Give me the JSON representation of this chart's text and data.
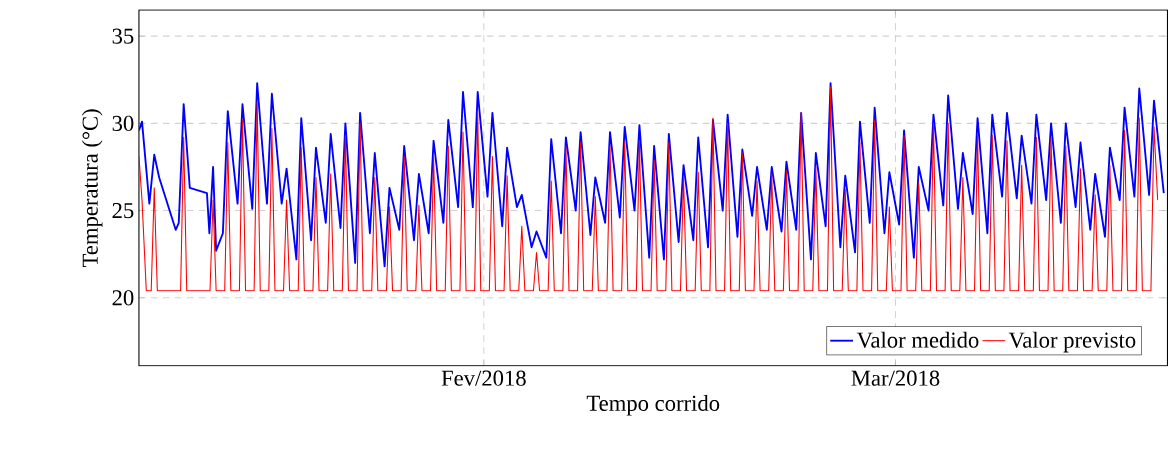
{
  "chart_data": {
    "type": "line",
    "xlabel": "Tempo corrido",
    "ylabel": "Temperatura (°C)",
    "xlim": [
      "2018-01-08T13:00",
      "2018-03-19T12:00"
    ],
    "xticks": [
      {
        "value": "2018-02-01",
        "label": "Fev/2018"
      },
      {
        "value": "2018-03-01",
        "label": "Mar/2018"
      }
    ],
    "ylim": [
      16.1,
      36.5
    ],
    "yticks": [
      20,
      25,
      30,
      35
    ],
    "grid": true,
    "legend": "bottom right",
    "line_style": "solid",
    "series": [
      {
        "name": "Valor medido",
        "color": "#0000ff",
        "x": [
          "2018-01-08T13:00",
          "2018-01-08T18:00",
          "2018-01-09T06:00",
          "2018-01-09T14:00",
          "2018-01-09T22:00",
          "2018-01-11T01:00",
          "2018-01-11T06:00",
          "2018-01-11T14:00",
          "2018-01-12T00:00",
          "2018-01-13T04:00",
          "2018-01-13T08:00",
          "2018-01-13T14:00",
          "2018-01-13T19:00",
          "2018-01-14T06:00",
          "2018-01-14T14:00",
          "2018-01-15T06:00",
          "2018-01-15T14:00",
          "2018-01-16T06:00",
          "2018-01-16T14:00",
          "2018-01-17T06:00",
          "2018-01-17T14:00",
          "2018-01-18T06:00",
          "2018-01-18T14:00",
          "2018-01-19T06:00",
          "2018-01-19T14:00",
          "2018-01-20T06:00",
          "2018-01-20T14:00",
          "2018-01-21T06:00",
          "2018-01-21T14:00",
          "2018-01-22T06:00",
          "2018-01-22T14:00",
          "2018-01-23T06:00",
          "2018-01-23T14:00",
          "2018-01-24T06:00",
          "2018-01-24T14:00",
          "2018-01-25T06:00",
          "2018-01-25T14:00",
          "2018-01-26T06:00",
          "2018-01-26T14:00",
          "2018-01-27T06:00",
          "2018-01-27T14:00",
          "2018-01-28T06:00",
          "2018-01-28T14:00",
          "2018-01-29T06:00",
          "2018-01-29T14:00",
          "2018-01-30T06:00",
          "2018-01-30T14:00",
          "2018-01-31T06:00",
          "2018-01-31T14:00",
          "2018-02-01T06:00",
          "2018-02-01T14:00",
          "2018-02-02T06:00",
          "2018-02-02T14:00",
          "2018-02-03T06:00",
          "2018-02-03T14:00",
          "2018-02-04T06:00",
          "2018-02-04T14:00",
          "2018-02-05T06:00",
          "2018-02-05T14:00",
          "2018-02-06T06:00",
          "2018-02-06T14:00",
          "2018-02-07T06:00",
          "2018-02-07T14:00",
          "2018-02-08T06:00",
          "2018-02-08T14:00",
          "2018-02-09T06:00",
          "2018-02-09T14:00",
          "2018-02-10T06:00",
          "2018-02-10T14:00",
          "2018-02-11T06:00",
          "2018-02-11T14:00",
          "2018-02-12T06:00",
          "2018-02-12T14:00",
          "2018-02-13T06:00",
          "2018-02-13T14:00",
          "2018-02-14T06:00",
          "2018-02-14T14:00",
          "2018-02-15T06:00",
          "2018-02-15T14:00",
          "2018-02-16T06:00",
          "2018-02-16T14:00",
          "2018-02-17T06:00",
          "2018-02-17T14:00",
          "2018-02-18T06:00",
          "2018-02-18T14:00",
          "2018-02-19T06:00",
          "2018-02-19T14:00",
          "2018-02-20T06:00",
          "2018-02-20T14:00",
          "2018-02-21T06:00",
          "2018-02-21T14:00",
          "2018-02-22T06:00",
          "2018-02-22T14:00",
          "2018-02-23T06:00",
          "2018-02-23T14:00",
          "2018-02-24T06:00",
          "2018-02-24T14:00",
          "2018-02-25T06:00",
          "2018-02-25T14:00",
          "2018-02-26T06:00",
          "2018-02-26T14:00",
          "2018-02-27T06:00",
          "2018-02-27T14:00",
          "2018-02-28T06:00",
          "2018-02-28T14:00",
          "2018-03-01T06:00",
          "2018-03-01T14:00",
          "2018-03-02T06:00",
          "2018-03-02T14:00",
          "2018-03-03T06:00",
          "2018-03-03T14:00",
          "2018-03-04T06:00",
          "2018-03-04T14:00",
          "2018-03-05T06:00",
          "2018-03-05T14:00",
          "2018-03-06T06:00",
          "2018-03-06T14:00",
          "2018-03-07T06:00",
          "2018-03-07T14:00",
          "2018-03-08T06:00",
          "2018-03-08T14:00",
          "2018-03-09T06:00",
          "2018-03-09T14:00",
          "2018-03-10T06:00",
          "2018-03-10T14:00",
          "2018-03-11T06:00",
          "2018-03-11T14:00",
          "2018-03-12T06:00",
          "2018-03-12T14:00",
          "2018-03-13T06:00",
          "2018-03-13T14:00",
          "2018-03-14T06:00",
          "2018-03-14T14:00",
          "2018-03-15T06:00",
          "2018-03-15T14:00",
          "2018-03-16T06:00",
          "2018-03-16T14:00",
          "2018-03-17T06:00",
          "2018-03-17T14:00",
          "2018-03-18T06:00",
          "2018-03-18T14:00",
          "2018-03-19T06:00"
        ],
        "values": [
          29.6,
          30.1,
          25.4,
          28.2,
          26.9,
          23.9,
          24.3,
          31.1,
          26.3,
          26.0,
          23.7,
          27.5,
          22.7,
          23.7,
          30.7,
          25.4,
          31.1,
          25.1,
          32.3,
          25.4,
          31.7,
          25.4,
          27.4,
          22.2,
          30.3,
          23.3,
          28.6,
          24.3,
          29.4,
          24.0,
          30.0,
          22.0,
          30.6,
          23.7,
          28.3,
          21.8,
          26.3,
          23.9,
          28.7,
          23.3,
          27.1,
          23.7,
          29.0,
          24.3,
          30.2,
          25.2,
          31.8,
          25.2,
          31.8,
          25.8,
          30.6,
          24.1,
          28.6,
          25.2,
          25.9,
          22.9,
          23.8,
          22.3,
          29.1,
          23.7,
          29.2,
          25.0,
          29.5,
          23.6,
          26.9,
          24.3,
          29.5,
          24.6,
          29.8,
          25.0,
          29.9,
          22.3,
          28.7,
          22.2,
          29.4,
          23.2,
          27.6,
          23.3,
          29.2,
          22.9,
          30.2,
          25.0,
          30.5,
          23.5,
          28.5,
          24.7,
          27.5,
          23.9,
          27.5,
          23.8,
          27.8,
          23.9,
          30.6,
          22.2,
          28.3,
          24.1,
          32.3,
          22.9,
          27.0,
          22.6,
          30.1,
          24.3,
          30.9,
          23.7,
          27.2,
          24.2,
          29.6,
          22.3,
          27.5,
          25.0,
          30.5,
          25.3,
          31.6,
          25.1,
          28.3,
          24.8,
          30.3,
          23.7,
          30.5,
          25.8,
          30.6,
          25.7,
          29.3,
          25.4,
          30.5,
          25.6,
          30.0,
          24.3,
          30.0,
          25.2,
          28.9,
          23.9,
          27.1,
          23.5,
          28.6,
          25.6,
          30.9,
          25.8,
          32.0,
          25.9,
          31.3,
          26.0
        ]
      },
      {
        "name": "Valor previsto",
        "color": "#ff0000",
        "x": [
          "2018-01-08T13:00",
          "2018-01-08T18:00",
          "2018-01-09T01:00",
          "2018-01-09T09:00",
          "2018-01-09T14:00",
          "2018-01-09T19:00",
          "2018-01-11T09:00",
          "2018-01-11T14:00",
          "2018-01-11T19:00",
          "2018-01-13T09:00",
          "2018-01-13T14:00",
          "2018-01-13T19:00",
          "2018-01-14T09:00",
          "2018-01-14T14:00",
          "2018-01-14T19:00",
          "2018-01-15T09:00",
          "2018-01-15T14:00",
          "2018-01-15T19:00",
          "2018-01-16T09:00",
          "2018-01-16T14:00",
          "2018-01-16T19:00",
          "2018-01-17T09:00",
          "2018-01-17T14:00",
          "2018-01-17T19:00",
          "2018-01-18T09:00",
          "2018-01-18T14:00",
          "2018-01-18T19:00",
          "2018-01-19T09:00",
          "2018-01-19T14:00",
          "2018-01-19T19:00",
          "2018-01-20T09:00",
          "2018-01-20T14:00",
          "2018-01-20T19:00",
          "2018-01-21T09:00",
          "2018-01-21T14:00",
          "2018-01-21T19:00",
          "2018-01-22T09:00",
          "2018-01-22T14:00",
          "2018-01-22T19:00",
          "2018-01-23T09:00",
          "2018-01-23T14:00",
          "2018-01-23T19:00",
          "2018-01-24T09:00",
          "2018-01-24T14:00",
          "2018-01-24T19:00",
          "2018-01-25T09:00",
          "2018-01-25T14:00",
          "2018-01-25T19:00",
          "2018-01-26T09:00",
          "2018-01-26T14:00",
          "2018-01-26T19:00",
          "2018-01-27T09:00",
          "2018-01-27T14:00",
          "2018-01-27T19:00",
          "2018-01-28T09:00",
          "2018-01-28T14:00",
          "2018-01-28T19:00",
          "2018-01-29T09:00",
          "2018-01-29T14:00",
          "2018-01-29T19:00",
          "2018-01-30T09:00",
          "2018-01-30T14:00",
          "2018-01-30T19:00",
          "2018-01-31T09:00",
          "2018-01-31T14:00",
          "2018-01-31T19:00",
          "2018-02-01T09:00",
          "2018-02-01T14:00",
          "2018-02-01T19:00",
          "2018-02-02T09:00",
          "2018-02-02T14:00",
          "2018-02-02T19:00",
          "2018-02-03T09:00",
          "2018-02-03T14:00",
          "2018-02-03T19:00",
          "2018-02-04T09:00",
          "2018-02-04T14:00",
          "2018-02-04T19:00",
          "2018-02-05T09:00",
          "2018-02-05T14:00",
          "2018-02-05T19:00",
          "2018-02-06T09:00",
          "2018-02-06T14:00",
          "2018-02-06T19:00",
          "2018-02-07T09:00",
          "2018-02-07T14:00",
          "2018-02-07T19:00",
          "2018-02-08T09:00",
          "2018-02-08T14:00",
          "2018-02-08T19:00",
          "2018-02-09T09:00",
          "2018-02-09T14:00",
          "2018-02-09T19:00",
          "2018-02-10T09:00",
          "2018-02-10T14:00",
          "2018-02-10T19:00",
          "2018-02-11T09:00",
          "2018-02-11T14:00",
          "2018-02-11T19:00",
          "2018-02-12T09:00",
          "2018-02-12T14:00",
          "2018-02-12T19:00",
          "2018-02-13T09:00",
          "2018-02-13T14:00",
          "2018-02-13T19:00",
          "2018-02-14T09:00",
          "2018-02-14T14:00",
          "2018-02-14T19:00",
          "2018-02-15T09:00",
          "2018-02-15T14:00",
          "2018-02-15T19:00",
          "2018-02-16T09:00",
          "2018-02-16T14:00",
          "2018-02-16T19:00",
          "2018-02-17T09:00",
          "2018-02-17T14:00",
          "2018-02-17T19:00",
          "2018-02-18T09:00",
          "2018-02-18T14:00",
          "2018-02-18T19:00",
          "2018-02-19T09:00",
          "2018-02-19T14:00",
          "2018-02-19T19:00",
          "2018-02-20T09:00",
          "2018-02-20T14:00",
          "2018-02-20T19:00",
          "2018-02-21T09:00",
          "2018-02-21T14:00",
          "2018-02-21T19:00",
          "2018-02-22T09:00",
          "2018-02-22T14:00",
          "2018-02-22T19:00",
          "2018-02-23T09:00",
          "2018-02-23T14:00",
          "2018-02-23T19:00",
          "2018-02-24T09:00",
          "2018-02-24T14:00",
          "2018-02-24T19:00",
          "2018-02-25T09:00",
          "2018-02-25T14:00",
          "2018-02-25T19:00",
          "2018-02-26T09:00",
          "2018-02-26T14:00",
          "2018-02-26T19:00",
          "2018-02-27T09:00",
          "2018-02-27T14:00",
          "2018-02-27T19:00",
          "2018-02-28T09:00",
          "2018-02-28T14:00",
          "2018-02-28T19:00",
          "2018-03-01T09:00",
          "2018-03-01T14:00",
          "2018-03-01T19:00",
          "2018-03-02T09:00",
          "2018-03-02T14:00",
          "2018-03-02T19:00",
          "2018-03-03T09:00",
          "2018-03-03T14:00",
          "2018-03-03T19:00",
          "2018-03-04T09:00",
          "2018-03-04T14:00",
          "2018-03-04T19:00",
          "2018-03-05T09:00",
          "2018-03-05T14:00",
          "2018-03-05T19:00",
          "2018-03-06T09:00",
          "2018-03-06T14:00",
          "2018-03-06T19:00",
          "2018-03-07T09:00",
          "2018-03-07T14:00",
          "2018-03-07T19:00",
          "2018-03-08T09:00",
          "2018-03-08T14:00",
          "2018-03-08T19:00",
          "2018-03-09T09:00",
          "2018-03-09T14:00",
          "2018-03-09T19:00",
          "2018-03-10T09:00",
          "2018-03-10T14:00",
          "2018-03-10T19:00",
          "2018-03-11T09:00",
          "2018-03-11T14:00",
          "2018-03-11T19:00",
          "2018-03-12T09:00",
          "2018-03-12T14:00",
          "2018-03-12T19:00",
          "2018-03-13T09:00",
          "2018-03-13T14:00",
          "2018-03-13T19:00",
          "2018-03-14T09:00",
          "2018-03-14T14:00",
          "2018-03-14T19:00",
          "2018-03-15T09:00",
          "2018-03-15T14:00",
          "2018-03-15T19:00",
          "2018-03-16T09:00",
          "2018-03-16T14:00",
          "2018-03-16T19:00",
          "2018-03-17T09:00",
          "2018-03-17T14:00",
          "2018-03-17T19:00",
          "2018-03-18T09:00",
          "2018-03-18T14:00",
          "2018-03-18T20:00"
        ],
        "values": [
          28.1,
          25.6,
          20.4,
          20.4,
          26.3,
          20.4,
          20.4,
          29.2,
          20.4,
          20.4,
          25.6,
          20.4,
          20.4,
          28.9,
          20.4,
          20.4,
          30.2,
          20.4,
          20.4,
          31.2,
          20.4,
          20.4,
          29.7,
          20.4,
          20.4,
          25.6,
          20.4,
          20.4,
          28.6,
          20.4,
          20.4,
          26.9,
          20.4,
          20.4,
          27.1,
          20.4,
          20.4,
          29.3,
          20.4,
          20.4,
          30.0,
          20.4,
          20.4,
          26.9,
          20.4,
          20.4,
          25.2,
          20.4,
          20.4,
          28.1,
          20.4,
          20.4,
          25.3,
          20.4,
          20.4,
          28.1,
          20.4,
          20.4,
          28.7,
          20.4,
          20.4,
          29.5,
          20.4,
          20.4,
          30.6,
          20.4,
          20.4,
          28.1,
          20.4,
          20.4,
          27.0,
          20.4,
          20.4,
          24.1,
          20.4,
          20.4,
          22.6,
          20.4,
          20.4,
          26.7,
          20.4,
          20.4,
          28.7,
          20.4,
          20.4,
          28.9,
          20.4,
          20.4,
          25.8,
          20.4,
          20.4,
          28.7,
          20.4,
          20.4,
          28.9,
          20.4,
          20.4,
          29.0,
          20.4,
          20.4,
          27.9,
          20.4,
          20.4,
          28.9,
          20.4,
          20.4,
          26.9,
          20.4,
          20.4,
          27.2,
          20.4,
          20.4,
          30.3,
          20.4,
          20.4,
          30.0,
          20.4,
          20.4,
          28.3,
          20.4,
          20.4,
          26.7,
          20.4,
          20.4,
          27.1,
          20.4,
          20.4,
          27.3,
          20.4,
          20.4,
          30.6,
          20.4,
          20.4,
          27.5,
          20.4,
          20.4,
          32.1,
          20.4,
          20.4,
          26.2,
          20.4,
          20.4,
          28.9,
          20.4,
          20.4,
          30.2,
          20.4,
          20.4,
          25.2,
          20.4,
          20.4,
          29.3,
          20.4,
          20.4,
          26.6,
          20.4,
          20.4,
          30.0,
          20.4,
          20.4,
          30.0,
          20.4,
          20.4,
          26.9,
          20.4,
          20.4,
          29.3,
          20.4,
          20.4,
          29.3,
          20.4,
          20.4,
          29.0,
          20.4,
          20.4,
          27.6,
          20.4,
          20.4,
          29.2,
          20.4,
          20.4,
          29.2,
          20.4,
          20.4,
          28.7,
          20.4,
          20.4,
          27.4,
          20.4,
          20.4,
          25.9,
          20.4,
          20.4,
          27.6,
          20.4,
          20.4,
          29.6,
          20.4,
          20.4,
          30.3,
          20.4,
          20.4,
          29.8,
          25.6
        ]
      }
    ]
  }
}
